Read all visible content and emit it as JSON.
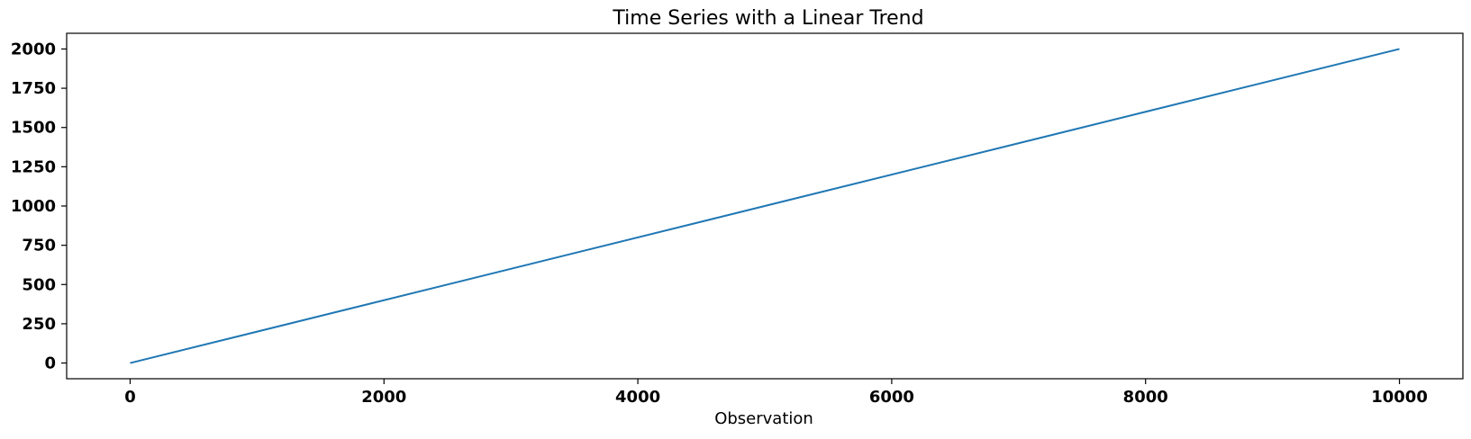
{
  "chart_data": {
    "type": "line",
    "title": "Time Series with a Linear Trend",
    "xlabel": "Observation",
    "ylabel": "",
    "xlim": [
      -500,
      10500
    ],
    "ylim": [
      -100,
      2100
    ],
    "xticks": [
      0,
      2000,
      4000,
      6000,
      8000,
      10000
    ],
    "xtick_labels": [
      "0",
      "2000",
      "4000",
      "6000",
      "8000",
      "10000"
    ],
    "yticks": [
      0,
      250,
      500,
      750,
      1000,
      1250,
      1500,
      1750,
      2000
    ],
    "ytick_labels": [
      "0",
      "250",
      "500",
      "750",
      "1000",
      "1250",
      "1500",
      "1750",
      "2000"
    ],
    "grid": false,
    "series": [
      {
        "color": "#1f77b4",
        "x": [
          0,
          10000
        ],
        "y": [
          0,
          2000
        ]
      }
    ]
  }
}
